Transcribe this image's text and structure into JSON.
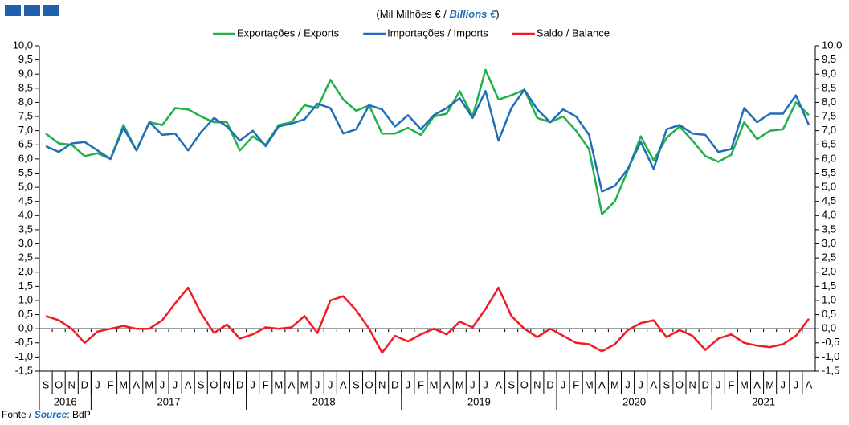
{
  "chart_data": {
    "type": "line",
    "subtitle": [
      "(Mil Milhões € / ",
      "Billions  €",
      ")"
    ],
    "source": [
      "Fonte / ",
      "Source",
      ": BdP"
    ],
    "categories": [
      "S",
      "O",
      "N",
      "D",
      "J",
      "F",
      "M",
      "A",
      "M",
      "J",
      "J",
      "A",
      "S",
      "O",
      "N",
      "D",
      "J",
      "F",
      "M",
      "A",
      "M",
      "J",
      "J",
      "A",
      "S",
      "O",
      "N",
      "D",
      "J",
      "F",
      "M",
      "A",
      "M",
      "J",
      "J",
      "A",
      "S",
      "O",
      "N",
      "D",
      "J",
      "F",
      "M",
      "A",
      "M",
      "J",
      "J",
      "A",
      "S",
      "O",
      "N",
      "D",
      "J",
      "F",
      "M",
      "A",
      "M",
      "J",
      "J",
      "A"
    ],
    "years": [
      "2016",
      "2017",
      "2018",
      "2019",
      "2020",
      "2021"
    ],
    "series": [
      {
        "name": "Exportações / Exports",
        "color": "#22b04a",
        "values": [
          6.9,
          6.55,
          6.5,
          6.1,
          6.2,
          6.0,
          7.2,
          6.3,
          7.3,
          7.2,
          7.8,
          7.75,
          7.5,
          7.3,
          7.3,
          6.3,
          6.8,
          6.5,
          7.2,
          7.3,
          7.9,
          7.8,
          8.8,
          8.1,
          7.7,
          7.9,
          6.9,
          6.9,
          7.1,
          6.85,
          7.5,
          7.6,
          8.4,
          7.5,
          9.15,
          8.1,
          8.25,
          8.45,
          7.45,
          7.3,
          7.5,
          7.0,
          6.35,
          4.05,
          4.5,
          5.6,
          6.8,
          5.95,
          6.75,
          7.15,
          6.65,
          6.1,
          5.9,
          6.15,
          7.3,
          6.7,
          7.0,
          7.05,
          8.0,
          7.55
        ]
      },
      {
        "name": "Importações / Imports",
        "color": "#1f6fb8",
        "values": [
          6.45,
          6.25,
          6.55,
          6.6,
          6.3,
          6.0,
          7.1,
          6.3,
          7.3,
          6.85,
          6.9,
          6.3,
          6.95,
          7.45,
          7.15,
          6.65,
          7.0,
          6.45,
          7.15,
          7.25,
          7.4,
          7.95,
          7.8,
          6.9,
          7.05,
          7.9,
          7.75,
          7.15,
          7.55,
          7.05,
          7.55,
          7.8,
          8.15,
          7.45,
          8.4,
          6.65,
          7.8,
          8.45,
          7.75,
          7.3,
          7.75,
          7.5,
          6.85,
          4.85,
          5.05,
          5.65,
          6.6,
          5.65,
          7.05,
          7.2,
          6.9,
          6.85,
          6.25,
          6.35,
          7.8,
          7.3,
          7.6,
          7.6,
          8.25,
          7.2
        ]
      },
      {
        "name": "Saldo / Balance",
        "color": "#ee1c25",
        "values": [
          0.45,
          0.3,
          0.0,
          -0.5,
          -0.1,
          0.0,
          0.1,
          0.0,
          0.0,
          0.3,
          0.9,
          1.45,
          0.55,
          -0.15,
          0.15,
          -0.35,
          -0.2,
          0.05,
          0.0,
          0.05,
          0.45,
          -0.15,
          1.0,
          1.15,
          0.65,
          0.0,
          -0.85,
          -0.25,
          -0.45,
          -0.2,
          0.0,
          -0.2,
          0.25,
          0.05,
          0.7,
          1.45,
          0.45,
          0.0,
          -0.3,
          0.0,
          -0.25,
          -0.5,
          -0.55,
          -0.8,
          -0.55,
          -0.05,
          0.2,
          0.3,
          -0.3,
          -0.05,
          -0.25,
          -0.75,
          -0.35,
          -0.2,
          -0.5,
          -0.6,
          -0.65,
          -0.55,
          -0.25,
          0.35
        ]
      }
    ],
    "ylim": [
      -1.5,
      10.0
    ],
    "yticks": [
      {
        "value": 10.0,
        "label": "10,0"
      },
      {
        "value": 9.5,
        "label": "9,5"
      },
      {
        "value": 9.0,
        "label": "9,0"
      },
      {
        "value": 8.5,
        "label": "8,5"
      },
      {
        "value": 8.0,
        "label": "8,0"
      },
      {
        "value": 7.5,
        "label": "7,5"
      },
      {
        "value": 7.0,
        "label": "7,0"
      },
      {
        "value": 6.5,
        "label": "6,5"
      },
      {
        "value": 6.0,
        "label": "6,0"
      },
      {
        "value": 5.5,
        "label": "5,5"
      },
      {
        "value": 5.0,
        "label": "5,0"
      },
      {
        "value": 4.5,
        "label": "4,5"
      },
      {
        "value": 4.0,
        "label": "4,0"
      },
      {
        "value": 3.5,
        "label": "3,5"
      },
      {
        "value": 3.0,
        "label": "3,0"
      },
      {
        "value": 2.5,
        "label": "2,5"
      },
      {
        "value": 2.0,
        "label": "2,0"
      },
      {
        "value": 1.5,
        "label": "1,5"
      },
      {
        "value": 1.0,
        "label": "1,0"
      },
      {
        "value": 0.5,
        "label": "0,5"
      },
      {
        "value": 0,
        "label": "0,0"
      },
      {
        "value": -0.5,
        "label": "-0,5"
      },
      {
        "value": -1.0,
        "label": "-1,0"
      },
      {
        "value": -1.5,
        "label": "-1,5"
      }
    ],
    "grid": false
  }
}
